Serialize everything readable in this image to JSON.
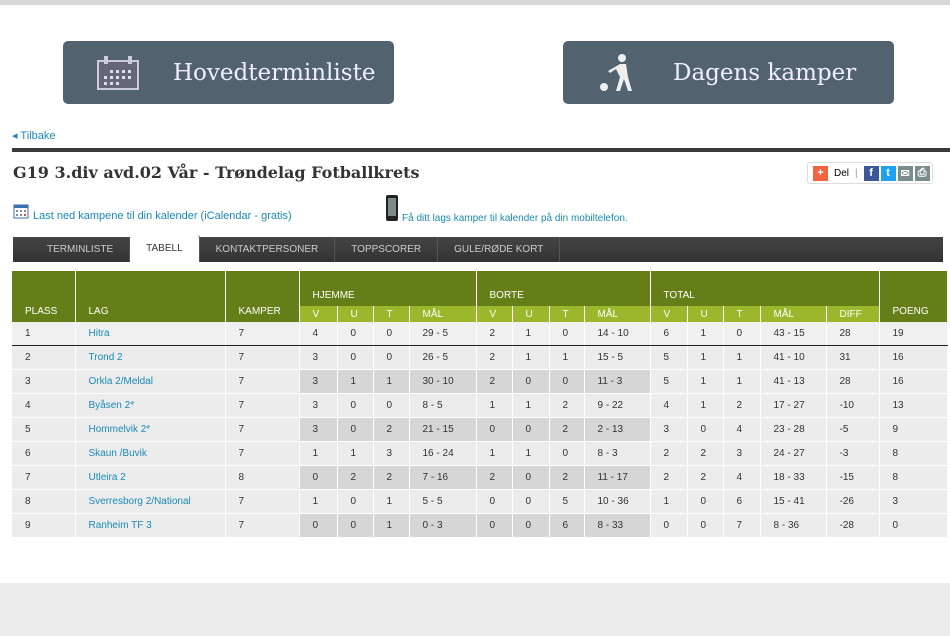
{
  "nav": {
    "main_schedule": "Hovedterminliste",
    "todays_matches": "Dagens kamper",
    "back": "Tilbake"
  },
  "title": "G19 3.div avd.02 Vår - Trøndelag Fotballkrets",
  "share": {
    "label": "Del"
  },
  "links": {
    "ical": "Last ned kampene til din kalender (iCalendar - gratis)",
    "mobile": "Få ditt lags kamper til kalender på din mobiltelefon."
  },
  "tabs": [
    "TERMINLISTE",
    "TABELL",
    "KONTAKTPERSONER",
    "TOPPSCORER",
    "GULE/RØDE KORT"
  ],
  "table": {
    "headers": {
      "plass": "PLASS",
      "lag": "LAG",
      "kamper": "KAMPER",
      "hjemme": "HJEMME",
      "borte": "BORTE",
      "total": "TOTAL",
      "poeng": "POENG",
      "v": "V",
      "u": "U",
      "t": "T",
      "mal": "MÅL",
      "diff": "DIFF"
    },
    "rows": [
      [
        "1",
        "Hitra",
        "7",
        "4",
        "0",
        "0",
        "29 - 5",
        "2",
        "1",
        "0",
        "14 - 10",
        "6",
        "1",
        "0",
        "43 - 15",
        "28",
        "19"
      ],
      [
        "2",
        "Trond 2",
        "7",
        "3",
        "0",
        "0",
        "26 - 5",
        "2",
        "1",
        "1",
        "15 - 5",
        "5",
        "1",
        "1",
        "41 - 10",
        "31",
        "16"
      ],
      [
        "3",
        "Orkla 2/Meldal",
        "7",
        "3",
        "1",
        "1",
        "30 - 10",
        "2",
        "0",
        "0",
        "11 - 3",
        "5",
        "1",
        "1",
        "41 - 13",
        "28",
        "16"
      ],
      [
        "4",
        "Byåsen 2*",
        "7",
        "3",
        "0",
        "0",
        "8 - 5",
        "1",
        "1",
        "2",
        "9 - 22",
        "4",
        "1",
        "2",
        "17 - 27",
        "-10",
        "13"
      ],
      [
        "5",
        "Hommelvik 2*",
        "7",
        "3",
        "0",
        "2",
        "21 - 15",
        "0",
        "0",
        "2",
        "2 - 13",
        "3",
        "0",
        "4",
        "23 - 28",
        "-5",
        "9"
      ],
      [
        "6",
        "Skaun /Buvik",
        "7",
        "1",
        "1",
        "3",
        "16 - 24",
        "1",
        "1",
        "0",
        "8 - 3",
        "2",
        "2",
        "3",
        "24 - 27",
        "-3",
        "8"
      ],
      [
        "7",
        "Utleira 2",
        "8",
        "0",
        "2",
        "2",
        "7 - 16",
        "2",
        "0",
        "2",
        "11 - 17",
        "2",
        "2",
        "4",
        "18 - 33",
        "-15",
        "8"
      ],
      [
        "8",
        "Sverresborg 2/National",
        "7",
        "1",
        "0",
        "1",
        "5 - 5",
        "0",
        "0",
        "5",
        "10 - 36",
        "1",
        "0",
        "6",
        "15 - 41",
        "-26",
        "3"
      ],
      [
        "9",
        "Ranheim TF 3",
        "7",
        "0",
        "0",
        "1",
        "0 - 3",
        "0",
        "0",
        "6",
        "8 - 33",
        "0",
        "0",
        "7",
        "8 - 36",
        "-28",
        "0"
      ]
    ]
  }
}
